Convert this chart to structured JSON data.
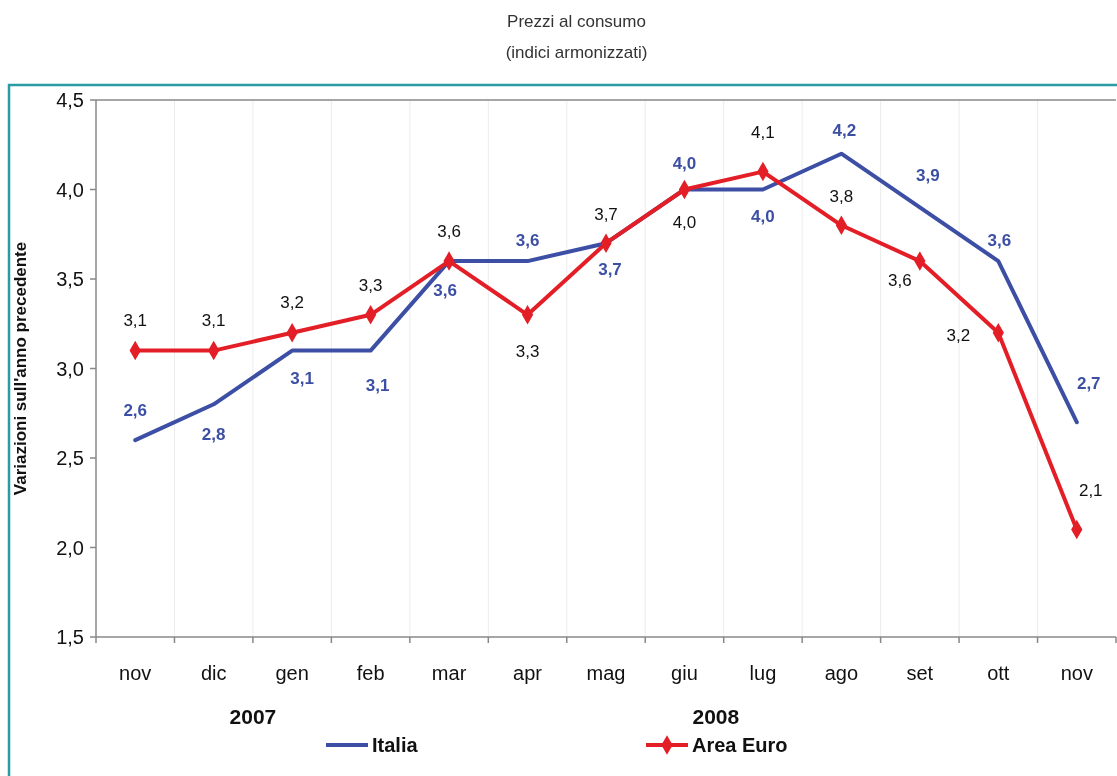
{
  "chart_data": {
    "type": "line",
    "title": "Prezzi al consumo",
    "subtitle": "(indici armonizzati)",
    "ylabel": "Variazioni sull'anno precedente",
    "categories": [
      "nov",
      "dic",
      "gen",
      "feb",
      "mar",
      "apr",
      "mag",
      "giu",
      "lug",
      "ago",
      "set",
      "ott",
      "nov"
    ],
    "series": [
      {
        "name": "Italia",
        "color": "#3c4fa4",
        "marker": "none",
        "values": [
          2.6,
          2.8,
          3.1,
          3.1,
          3.6,
          3.6,
          3.7,
          4.0,
          4.0,
          4.2,
          3.9,
          3.6,
          2.7
        ],
        "value_labels": [
          "2,6",
          "2,8",
          "3,1",
          "3,1",
          "3,6",
          "3,6",
          "3,7",
          "4,0",
          "4,0",
          "4,2",
          "3,9",
          "3,6",
          "2,7"
        ]
      },
      {
        "name": "Area Euro",
        "color": "#e31e26",
        "marker": "diamond",
        "values": [
          3.1,
          3.1,
          3.2,
          3.3,
          3.6,
          3.3,
          3.7,
          4.0,
          4.1,
          3.8,
          3.6,
          3.2,
          2.1
        ],
        "value_labels": [
          "3,1",
          "3,1",
          "3,2",
          "3,3",
          "3,6",
          "3,3",
          "3,7",
          "4,0",
          "4,1",
          "3,8",
          "3,6",
          "3,2",
          "2,1"
        ]
      }
    ],
    "ylim": [
      1.5,
      4.5
    ],
    "yticks": [
      {
        "value": 1.5,
        "label": "1,5"
      },
      {
        "value": 2.0,
        "label": "2,0"
      },
      {
        "value": 2.5,
        "label": "2,5"
      },
      {
        "value": 3.0,
        "label": "3,0"
      },
      {
        "value": 3.5,
        "label": "3,5"
      },
      {
        "value": 4.0,
        "label": "4,0"
      },
      {
        "value": 4.5,
        "label": "4,5"
      }
    ],
    "grid": "x",
    "legend": "bottom",
    "annotations": [
      "2007",
      "2008"
    ]
  }
}
